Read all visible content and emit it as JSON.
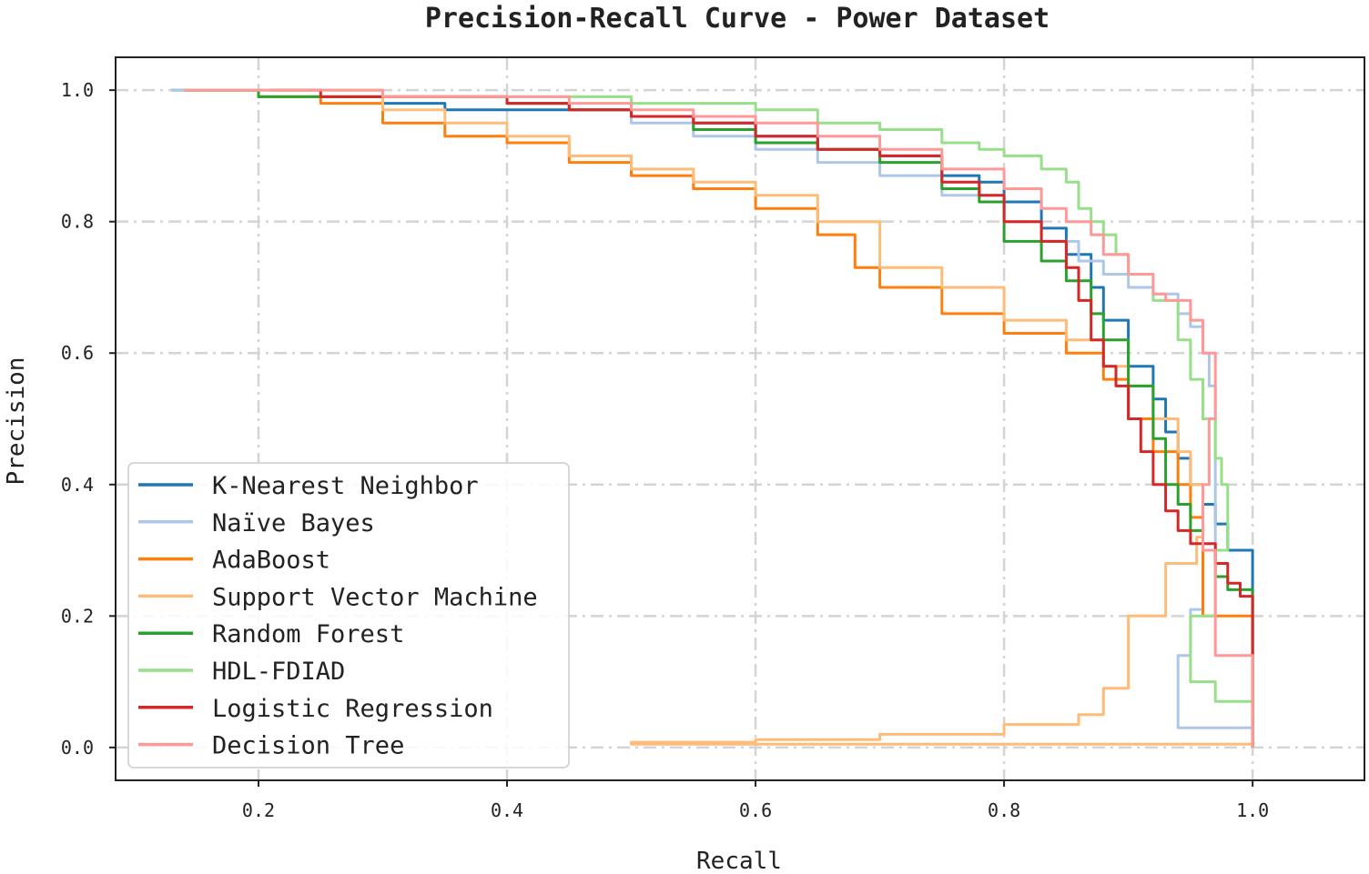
{
  "chart_data": {
    "type": "line",
    "title": "Precision-Recall Curve - Power Dataset",
    "xlabel": "Recall",
    "ylabel": "Precision",
    "xlim": [
      0.085,
      1.09
    ],
    "ylim": [
      -0.05,
      1.05
    ],
    "xticks": [
      0.2,
      0.4,
      0.6,
      0.8,
      1.0
    ],
    "xtick_labels": [
      "0.2",
      "0.4",
      "0.6",
      "0.8",
      "1.0"
    ],
    "yticks": [
      0.0,
      0.2,
      0.4,
      0.6,
      0.8,
      1.0
    ],
    "ytick_labels": [
      "0.0",
      "0.2",
      "0.4",
      "0.6",
      "0.8",
      "1.0"
    ],
    "grid": true,
    "legend_position": "lower-left",
    "series": [
      {
        "name": "K-Nearest Neighbor",
        "color": "#1f77b4",
        "x": [
          0.13,
          0.2,
          0.3,
          0.35,
          0.45,
          0.5,
          0.55,
          0.6,
          0.65,
          0.7,
          0.75,
          0.78,
          0.8,
          0.83,
          0.85,
          0.87,
          0.88,
          0.9,
          0.92,
          0.93,
          0.94,
          0.95,
          0.96,
          0.97,
          0.98,
          1.0,
          1.0
        ],
        "y": [
          1.0,
          0.99,
          0.98,
          0.97,
          0.97,
          0.96,
          0.95,
          0.93,
          0.91,
          0.9,
          0.87,
          0.86,
          0.83,
          0.79,
          0.75,
          0.7,
          0.65,
          0.58,
          0.53,
          0.48,
          0.44,
          0.4,
          0.37,
          0.34,
          0.3,
          0.27,
          0.0
        ]
      },
      {
        "name": "Naïve Bayes",
        "color": "#aec7e8",
        "x": [
          0.13,
          0.2,
          0.3,
          0.4,
          0.45,
          0.5,
          0.55,
          0.6,
          0.65,
          0.7,
          0.75,
          0.8,
          0.83,
          0.86,
          0.88,
          0.9,
          0.92,
          0.94,
          0.95,
          0.96,
          0.965,
          0.97,
          0.97,
          0.96,
          0.95,
          0.94,
          0.94,
          1.0
        ],
        "y": [
          1.0,
          0.99,
          0.99,
          0.98,
          0.97,
          0.95,
          0.93,
          0.91,
          0.89,
          0.87,
          0.84,
          0.8,
          0.77,
          0.74,
          0.72,
          0.7,
          0.69,
          0.66,
          0.64,
          0.6,
          0.55,
          0.45,
          0.3,
          0.21,
          0.14,
          0.14,
          0.03,
          0.03
        ]
      },
      {
        "name": "AdaBoost",
        "color": "#ff7f0e",
        "x": [
          0.14,
          0.2,
          0.25,
          0.3,
          0.35,
          0.4,
          0.45,
          0.5,
          0.55,
          0.6,
          0.65,
          0.68,
          0.7,
          0.75,
          0.8,
          0.85,
          0.88,
          0.9,
          0.92,
          0.94,
          0.95,
          0.96,
          0.96,
          0.97,
          1.0,
          1.0
        ],
        "y": [
          1.0,
          0.99,
          0.98,
          0.95,
          0.93,
          0.92,
          0.89,
          0.87,
          0.85,
          0.82,
          0.78,
          0.73,
          0.7,
          0.66,
          0.63,
          0.6,
          0.56,
          0.5,
          0.45,
          0.4,
          0.35,
          0.3,
          0.2,
          0.2,
          0.2,
          0.0
        ]
      },
      {
        "name": "Support Vector Machine",
        "color": "#ffbb78",
        "x": [
          0.14,
          0.2,
          0.25,
          0.3,
          0.35,
          0.4,
          0.45,
          0.5,
          0.55,
          0.6,
          0.65,
          0.7,
          0.75,
          0.8,
          0.85,
          0.88,
          0.9,
          0.92,
          0.94,
          0.95,
          0.96,
          0.955,
          0.93,
          0.9,
          0.88,
          0.86,
          0.8,
          0.7,
          0.6,
          0.5,
          1.0,
          1.0
        ],
        "y": [
          1.0,
          0.99,
          0.99,
          0.97,
          0.95,
          0.93,
          0.9,
          0.88,
          0.86,
          0.84,
          0.8,
          0.73,
          0.7,
          0.65,
          0.62,
          0.58,
          0.55,
          0.5,
          0.45,
          0.4,
          0.32,
          0.28,
          0.2,
          0.09,
          0.05,
          0.035,
          0.02,
          0.012,
          0.008,
          0.005,
          0.005,
          0.0
        ]
      },
      {
        "name": "Random Forest",
        "color": "#2ca02c",
        "x": [
          0.14,
          0.2,
          0.3,
          0.4,
          0.45,
          0.5,
          0.55,
          0.6,
          0.65,
          0.7,
          0.75,
          0.78,
          0.8,
          0.83,
          0.85,
          0.87,
          0.88,
          0.9,
          0.92,
          0.93,
          0.94,
          0.95,
          0.96,
          0.97,
          0.98,
          1.0,
          1.0
        ],
        "y": [
          1.0,
          0.99,
          0.99,
          0.98,
          0.97,
          0.96,
          0.94,
          0.92,
          0.91,
          0.89,
          0.85,
          0.83,
          0.77,
          0.74,
          0.71,
          0.66,
          0.62,
          0.55,
          0.47,
          0.4,
          0.37,
          0.33,
          0.3,
          0.26,
          0.24,
          0.2,
          0.0
        ]
      },
      {
        "name": "HDL-FDIAD",
        "color": "#98df8a",
        "x": [
          0.14,
          0.2,
          0.3,
          0.4,
          0.5,
          0.55,
          0.6,
          0.65,
          0.7,
          0.75,
          0.78,
          0.8,
          0.83,
          0.85,
          0.86,
          0.87,
          0.88,
          0.89,
          0.9,
          0.92,
          0.94,
          0.95,
          0.96,
          0.97,
          0.975,
          0.98,
          0.98,
          0.97,
          0.95,
          0.97,
          1.0,
          1.0
        ],
        "y": [
          1.0,
          1.0,
          0.99,
          0.99,
          0.98,
          0.98,
          0.97,
          0.95,
          0.94,
          0.92,
          0.91,
          0.9,
          0.88,
          0.86,
          0.82,
          0.8,
          0.78,
          0.75,
          0.72,
          0.68,
          0.62,
          0.56,
          0.5,
          0.44,
          0.4,
          0.35,
          0.3,
          0.2,
          0.1,
          0.07,
          0.07,
          0.0
        ]
      },
      {
        "name": "Logistic Regression",
        "color": "#d62728",
        "x": [
          0.21,
          0.25,
          0.3,
          0.4,
          0.45,
          0.5,
          0.55,
          0.6,
          0.65,
          0.7,
          0.75,
          0.78,
          0.8,
          0.83,
          0.85,
          0.86,
          0.87,
          0.88,
          0.89,
          0.9,
          0.91,
          0.92,
          0.93,
          0.94,
          0.95,
          0.97,
          0.98,
          0.99,
          1.0,
          1.0
        ],
        "y": [
          1.0,
          0.99,
          0.99,
          0.98,
          0.97,
          0.96,
          0.95,
          0.93,
          0.91,
          0.9,
          0.86,
          0.84,
          0.8,
          0.77,
          0.73,
          0.68,
          0.62,
          0.58,
          0.55,
          0.5,
          0.45,
          0.4,
          0.36,
          0.33,
          0.31,
          0.28,
          0.25,
          0.23,
          0.14,
          0.0
        ]
      },
      {
        "name": "Decision Tree",
        "color": "#ff9896",
        "x": [
          0.14,
          0.2,
          0.3,
          0.4,
          0.45,
          0.5,
          0.55,
          0.6,
          0.65,
          0.7,
          0.75,
          0.8,
          0.83,
          0.85,
          0.87,
          0.88,
          0.9,
          0.92,
          0.93,
          0.95,
          0.96,
          0.97,
          0.965,
          0.96,
          0.97,
          1.0,
          1.0
        ],
        "y": [
          1.0,
          1.0,
          0.99,
          0.99,
          0.98,
          0.97,
          0.96,
          0.95,
          0.93,
          0.91,
          0.88,
          0.85,
          0.82,
          0.8,
          0.78,
          0.75,
          0.72,
          0.69,
          0.68,
          0.65,
          0.6,
          0.5,
          0.4,
          0.3,
          0.14,
          0.14,
          0.0
        ]
      }
    ]
  }
}
